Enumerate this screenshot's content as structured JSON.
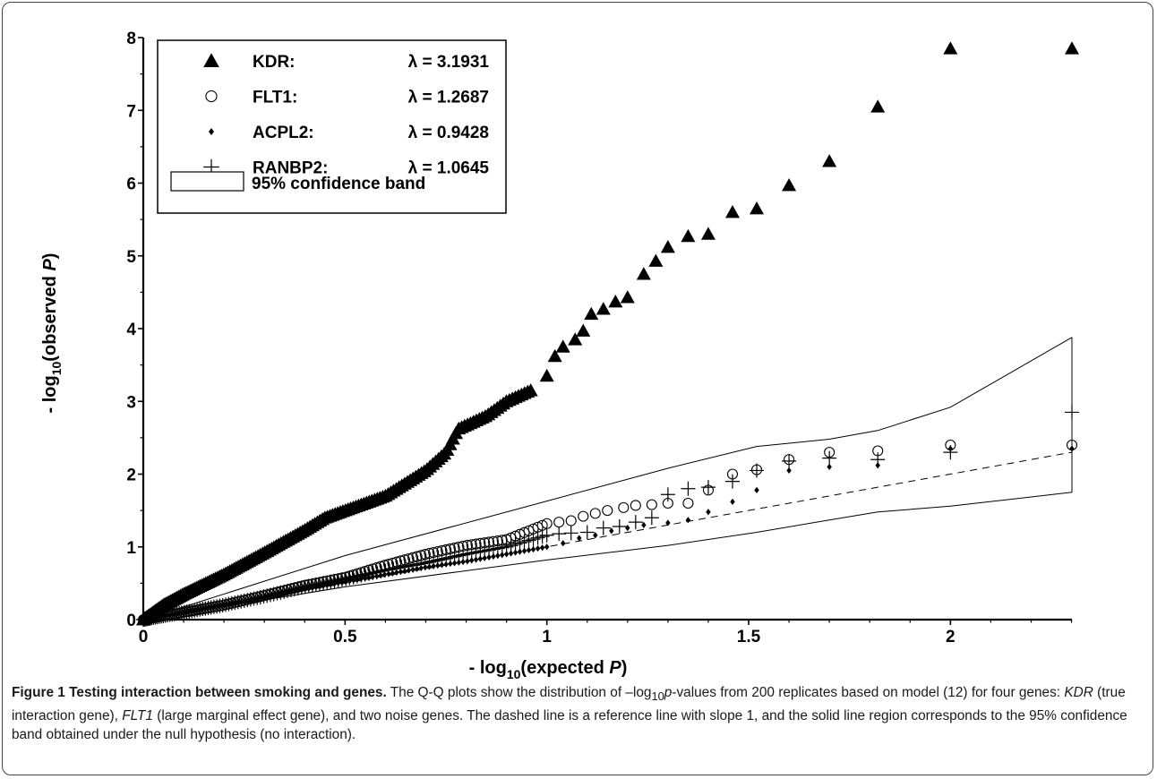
{
  "chart_data": {
    "type": "scatter",
    "xlabel": "- log10(expected P)",
    "ylabel": "- log10(observed P)",
    "xlabel_parts": {
      "pre": "- log",
      "sub": "10",
      "post": "(expected ",
      "italic": "P",
      "close": ")"
    },
    "ylabel_parts": {
      "pre": "- log",
      "sub": "10",
      "post": "(observed ",
      "italic": "P",
      "close": ")"
    },
    "xlim": [
      0,
      2.301
    ],
    "ylim": [
      0,
      8
    ],
    "x_ticks": [
      "0",
      "0.5",
      "1",
      "1.5",
      "2"
    ],
    "y_ticks": [
      "0",
      "1",
      "2",
      "3",
      "4",
      "5",
      "6",
      "7",
      "8"
    ],
    "legend_placement": "top-left",
    "series": [
      {
        "name": "KDR:",
        "lambda_text": "λ = 3.1931",
        "marker": "filled-triangle",
        "tail": [
          [
            0.96,
            3.15
          ],
          [
            1.0,
            3.35
          ],
          [
            1.02,
            3.62
          ],
          [
            1.04,
            3.75
          ],
          [
            1.07,
            3.85
          ],
          [
            1.09,
            3.97
          ],
          [
            1.11,
            4.2
          ],
          [
            1.14,
            4.27
          ],
          [
            1.17,
            4.37
          ],
          [
            1.2,
            4.43
          ],
          [
            1.24,
            4.75
          ],
          [
            1.27,
            4.93
          ],
          [
            1.3,
            5.12
          ],
          [
            1.35,
            5.27
          ],
          [
            1.4,
            5.3
          ],
          [
            1.46,
            5.6
          ],
          [
            1.52,
            5.65
          ],
          [
            1.6,
            5.97
          ],
          [
            1.7,
            6.3
          ],
          [
            1.82,
            7.05
          ],
          [
            2.0,
            7.85
          ],
          [
            2.301,
            7.85
          ]
        ]
      },
      {
        "name": "FLT1:",
        "lambda_text": "λ =  1.2687",
        "marker": "open-circle",
        "tail": [
          [
            1.0,
            1.32
          ],
          [
            1.03,
            1.34
          ],
          [
            1.06,
            1.36
          ],
          [
            1.09,
            1.42
          ],
          [
            1.12,
            1.46
          ],
          [
            1.15,
            1.5
          ],
          [
            1.19,
            1.54
          ],
          [
            1.22,
            1.57
          ],
          [
            1.26,
            1.58
          ],
          [
            1.3,
            1.6
          ],
          [
            1.35,
            1.6
          ],
          [
            1.4,
            1.78
          ],
          [
            1.46,
            2.0
          ],
          [
            1.52,
            2.06
          ],
          [
            1.6,
            2.2
          ],
          [
            1.7,
            2.3
          ],
          [
            1.82,
            2.32
          ],
          [
            2.0,
            2.4
          ],
          [
            2.301,
            2.4
          ]
        ]
      },
      {
        "name": "ACPL2:",
        "lambda_text": "λ = 0.9428",
        "marker": "filled-diamond",
        "tail": [
          [
            1.0,
            1.0
          ],
          [
            1.04,
            1.05
          ],
          [
            1.08,
            1.12
          ],
          [
            1.12,
            1.16
          ],
          [
            1.16,
            1.22
          ],
          [
            1.2,
            1.26
          ],
          [
            1.24,
            1.3
          ],
          [
            1.3,
            1.33
          ],
          [
            1.35,
            1.37
          ],
          [
            1.4,
            1.48
          ],
          [
            1.46,
            1.62
          ],
          [
            1.52,
            1.78
          ],
          [
            1.6,
            2.05
          ],
          [
            1.7,
            2.1
          ],
          [
            1.82,
            2.12
          ],
          [
            2.0,
            2.35
          ],
          [
            2.301,
            2.35
          ]
        ]
      },
      {
        "name": "RANBP2:",
        "lambda_text": "λ = 1.0645",
        "marker": "plus",
        "tail": [
          [
            1.0,
            1.16
          ],
          [
            1.03,
            1.18
          ],
          [
            1.06,
            1.19
          ],
          [
            1.1,
            1.2
          ],
          [
            1.14,
            1.26
          ],
          [
            1.18,
            1.28
          ],
          [
            1.22,
            1.34
          ],
          [
            1.26,
            1.4
          ],
          [
            1.3,
            1.72
          ],
          [
            1.35,
            1.8
          ],
          [
            1.4,
            1.82
          ],
          [
            1.46,
            1.9
          ],
          [
            1.52,
            2.05
          ],
          [
            1.6,
            2.18
          ],
          [
            1.7,
            2.22
          ],
          [
            1.82,
            2.2
          ],
          [
            2.0,
            2.3
          ],
          [
            2.301,
            2.85
          ]
        ]
      }
    ],
    "band_label": "95%   confidence band",
    "confidence_band": {
      "upper": [
        [
          0,
          0
        ],
        [
          0.5,
          0.88
        ],
        [
          1.0,
          1.63
        ],
        [
          1.3,
          2.08
        ],
        [
          1.52,
          2.38
        ],
        [
          1.7,
          2.48
        ],
        [
          1.82,
          2.6
        ],
        [
          2.0,
          2.92
        ],
        [
          2.301,
          3.88
        ]
      ],
      "lower": [
        [
          0,
          0
        ],
        [
          0.5,
          0.45
        ],
        [
          1.0,
          0.82
        ],
        [
          1.3,
          1.02
        ],
        [
          1.52,
          1.2
        ],
        [
          1.7,
          1.37
        ],
        [
          1.82,
          1.48
        ],
        [
          2.0,
          1.56
        ],
        [
          2.301,
          1.75
        ]
      ]
    },
    "reference_line": {
      "slope": 1,
      "from": [
        0,
        0
      ],
      "to": [
        2.301,
        2.301
      ]
    }
  },
  "caption": {
    "lead": "Figure 1 Testing interaction between smoking and genes.",
    "body_html": " The Q-Q plots show the distribution of –log<sub>10</sub><i>p</i>-values from 200 replicates based on model (12) for four genes: <i>KDR</i> (true interaction gene), <i>FLT1</i> (large marginal effect gene), and two noise genes. The dashed line is a reference line with slope 1, and the solid line region corresponds to the 95% confidence band obtained under the null hypothesis (no interaction)."
  }
}
